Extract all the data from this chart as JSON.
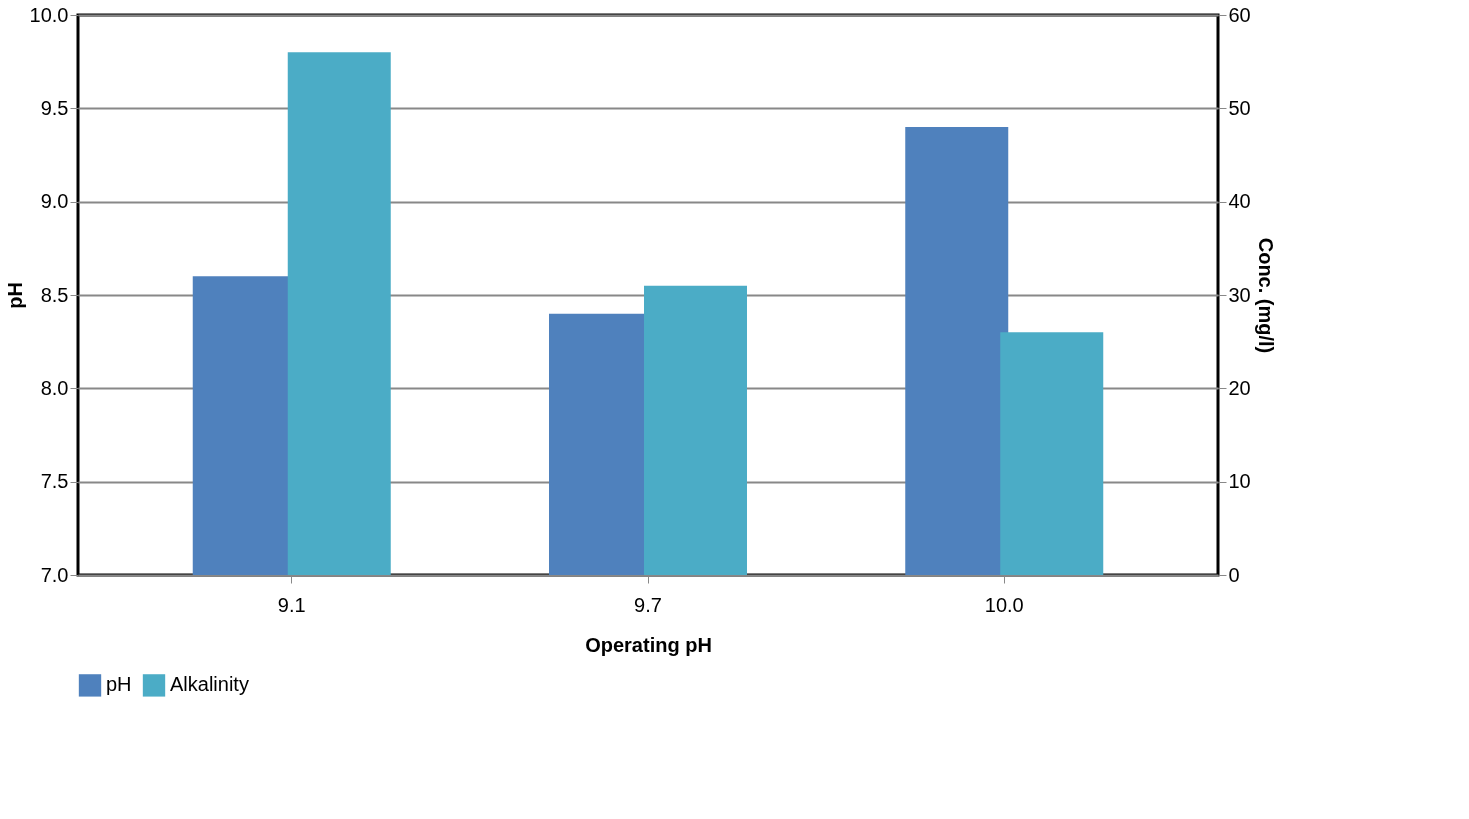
{
  "chart_data": {
    "type": "bar",
    "xlabel": "Operating pH",
    "ylabel": "pH",
    "y2label": "Conc. (mg/l)",
    "categories": [
      "9.1",
      "9.7",
      "10.0"
    ],
    "series": [
      {
        "name": "pH",
        "color": "#4f81bd",
        "values": [
          8.6,
          8.4,
          9.4
        ]
      },
      {
        "name": "Alkalinity",
        "color": "#4bacc6",
        "values": [
          56,
          31,
          26
        ],
        "axis": "y2"
      }
    ],
    "ylim": [
      7,
      10
    ],
    "yticks": [
      {
        "value": 7,
        "label": "7.0"
      },
      {
        "value": 7.5,
        "label": "7.5"
      },
      {
        "value": 8,
        "label": "8.0"
      },
      {
        "value": 8.5,
        "label": "8.5"
      },
      {
        "value": 9,
        "label": "9.0"
      },
      {
        "value": 9.5,
        "label": "9.5"
      },
      {
        "value": 10,
        "label": "10.0"
      }
    ],
    "y2lim": [
      0,
      60
    ],
    "y2ticks": [
      0,
      10,
      20,
      30,
      40,
      50,
      60
    ],
    "grid": "y",
    "legend": "bottom"
  }
}
